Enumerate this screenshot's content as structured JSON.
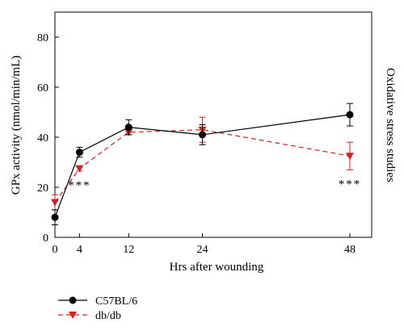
{
  "chart_data": {
    "type": "line",
    "xlabel": "Hrs after wounding",
    "ylabel": "GPx activity (nmol/min/mL)",
    "side_label": "Oxidative stress studies",
    "xlim": [
      0,
      48
    ],
    "ylim": [
      0,
      90
    ],
    "x_ticks": [
      0,
      4,
      12,
      24,
      48
    ],
    "y_ticks": [
      0,
      20,
      40,
      60,
      80
    ],
    "grid": false,
    "legend_position": "bottom-left",
    "significance_marker": "***",
    "series": [
      {
        "name": "C57BL/6",
        "color": "#000000",
        "line_style": "solid",
        "marker": "circle",
        "x": [
          0,
          4,
          12,
          24,
          48
        ],
        "y": [
          8,
          34,
          44,
          41,
          49
        ],
        "err": [
          3,
          2,
          3,
          4,
          4.5
        ]
      },
      {
        "name": "db/db",
        "color": "#d42020",
        "line_style": "dashed",
        "marker": "triangle-down",
        "x": [
          0,
          4,
          12,
          24,
          48
        ],
        "y": [
          14,
          27.5,
          42,
          43,
          32.5
        ],
        "err": [
          3,
          1,
          1,
          5,
          5.5
        ]
      }
    ],
    "annotations": [
      {
        "x": 4,
        "text": "***"
      },
      {
        "x": 48,
        "text": "***"
      }
    ]
  }
}
